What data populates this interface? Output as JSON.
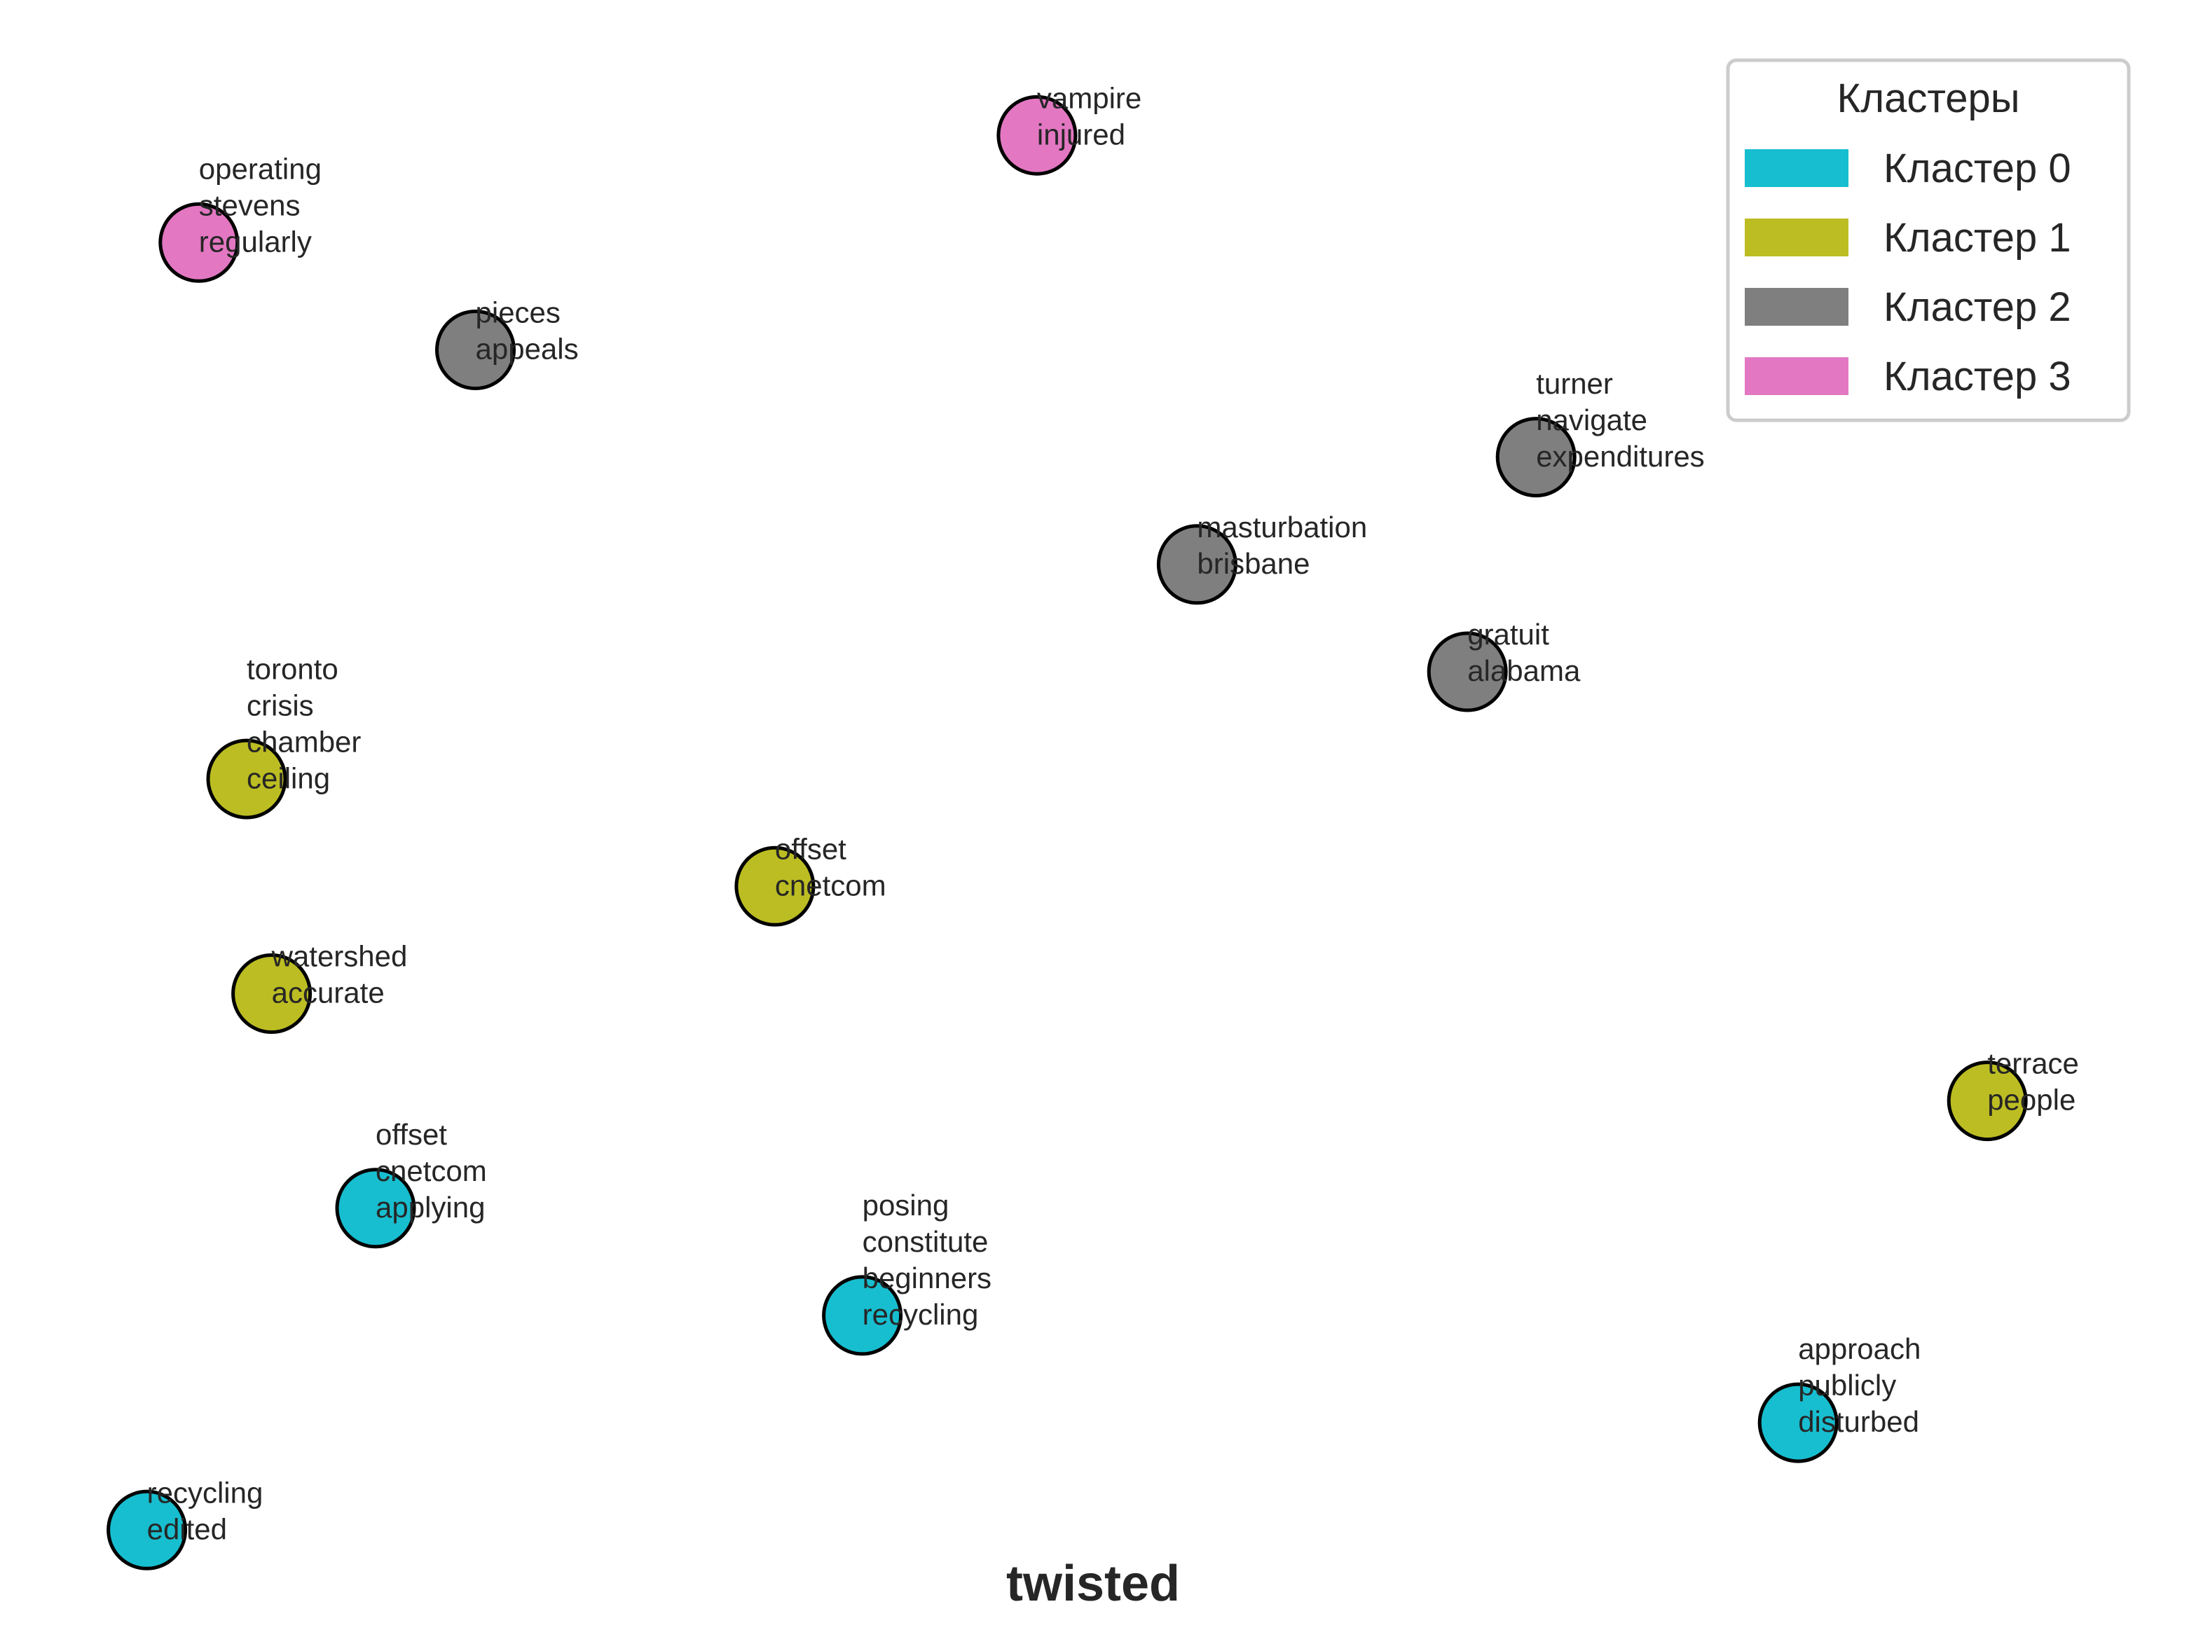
{
  "chart_data": {
    "type": "scatter",
    "title": "twisted",
    "xlabel": "",
    "ylabel": "",
    "grid": false,
    "axes_visible": false,
    "xlim": [
      0,
      100
    ],
    "ylim": [
      0,
      100
    ],
    "legend": {
      "title": "Кластеры",
      "placement": "top-right",
      "entries": [
        {
          "cluster": 0,
          "label": "Кластер 0"
        },
        {
          "cluster": 1,
          "label": "Кластер 1"
        },
        {
          "cluster": 2,
          "label": "Кластер 2"
        },
        {
          "cluster": 3,
          "label": "Кластер 3"
        }
      ]
    },
    "cluster_colors": [
      "#17becf",
      "#bcbd22",
      "#7f7f7f",
      "#e377c2"
    ],
    "points": [
      {
        "cluster": 3,
        "x": 7.0,
        "y": 86.6,
        "words": [
          "operating",
          "stevens",
          "regularly"
        ]
      },
      {
        "cluster": 3,
        "x": 47.3,
        "y": 93.3,
        "words": [
          "vampire",
          "injured"
        ]
      },
      {
        "cluster": 2,
        "x": 20.3,
        "y": 79.9,
        "words": [
          "pieces",
          "appeals"
        ]
      },
      {
        "cluster": 2,
        "x": 71.3,
        "y": 73.2,
        "words": [
          "turner",
          "navigate",
          "expenditures"
        ]
      },
      {
        "cluster": 2,
        "x": 55.0,
        "y": 66.5,
        "words": [
          "masturbation",
          "brisbane"
        ]
      },
      {
        "cluster": 2,
        "x": 68.0,
        "y": 59.8,
        "words": [
          "gratuit",
          "alabama"
        ]
      },
      {
        "cluster": 1,
        "x": 9.3,
        "y": 53.1,
        "words": [
          "toronto",
          "crisis",
          "chamber",
          "ceiling"
        ]
      },
      {
        "cluster": 1,
        "x": 34.7,
        "y": 46.4,
        "words": [
          "offset",
          "cnetcom"
        ]
      },
      {
        "cluster": 1,
        "x": 10.5,
        "y": 39.7,
        "words": [
          "watershed",
          "accurate"
        ]
      },
      {
        "cluster": 1,
        "x": 93.0,
        "y": 33.0,
        "words": [
          "terrace",
          "people"
        ]
      },
      {
        "cluster": 0,
        "x": 15.5,
        "y": 26.3,
        "words": [
          "offset",
          "cnetcom",
          "applying"
        ]
      },
      {
        "cluster": 0,
        "x": 38.9,
        "y": 19.6,
        "words": [
          "posing",
          "constitute",
          "beginners",
          "recycling"
        ]
      },
      {
        "cluster": 0,
        "x": 83.9,
        "y": 12.9,
        "words": [
          "approach",
          "publicly",
          "disturbed"
        ]
      },
      {
        "cluster": 0,
        "x": 4.5,
        "y": 6.2,
        "words": [
          "recycling",
          "edited"
        ]
      }
    ]
  }
}
